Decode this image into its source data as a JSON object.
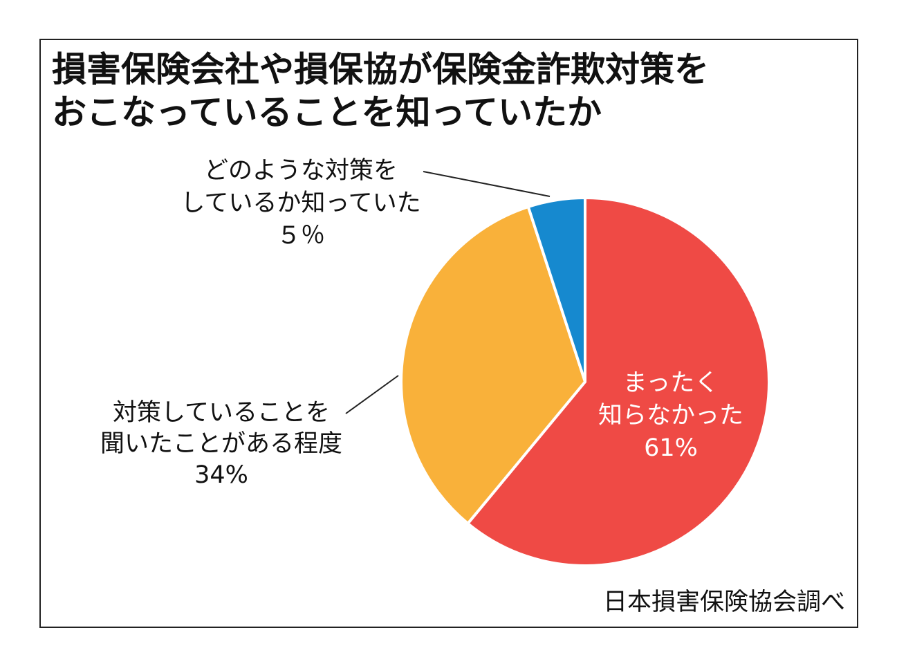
{
  "chart_data": {
    "type": "pie",
    "title": [
      "損害保険会社や損保協が保険金詐欺対策を",
      "おこなっていることを知っていたか"
    ],
    "categories": [
      [
        "まったく",
        "知らなかった"
      ],
      [
        "対策していることを",
        "聞いたことがある程度"
      ],
      [
        "どのような対策を",
        "しているか知っていた"
      ]
    ],
    "values": [
      61,
      34,
      5
    ],
    "value_labels": [
      "61%",
      "34%",
      "５％"
    ],
    "colors": [
      "#ef4a45",
      "#f9b13a",
      "#1689cf"
    ],
    "source": "日本損害保険協会調べ"
  }
}
